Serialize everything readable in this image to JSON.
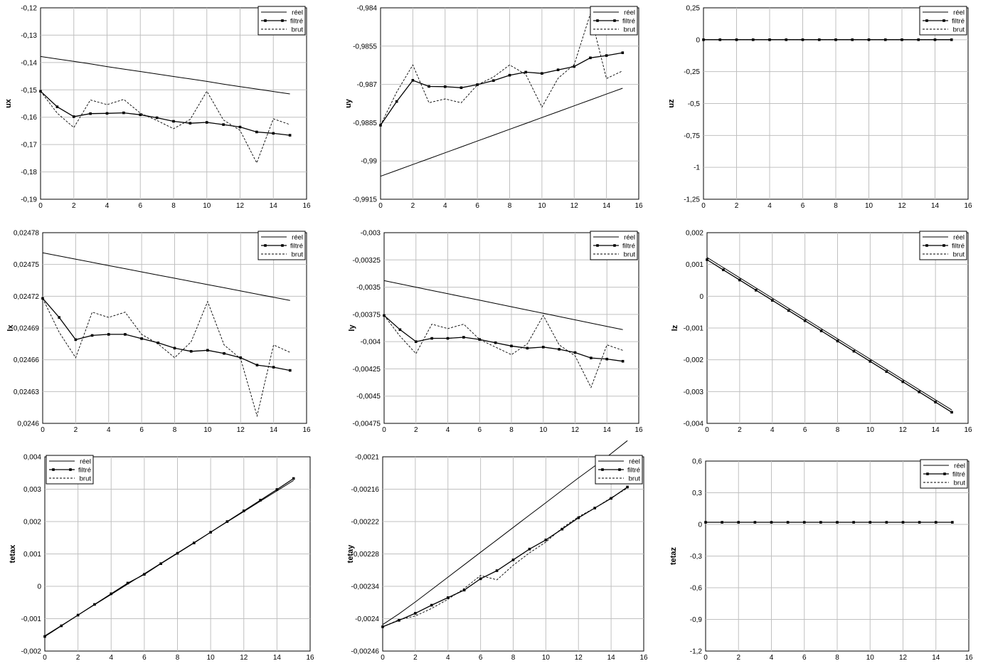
{
  "legend_labels": [
    "réel",
    "filtré",
    "brut"
  ],
  "chart_data": [
    {
      "type": "line",
      "ylabel": "ux",
      "x": [
        0,
        1,
        2,
        3,
        4,
        5,
        6,
        7,
        8,
        9,
        10,
        11,
        12,
        13,
        14,
        15
      ],
      "xlim": [
        0,
        16
      ],
      "xticks": [
        "0",
        "2",
        "4",
        "6",
        "8",
        "10",
        "12",
        "14",
        "16"
      ],
      "ylim": [
        -0.19,
        -0.12
      ],
      "yticks": [
        "-0,19",
        "-0,18",
        "-0,17",
        "-0,16",
        "-0,15",
        "-0,14",
        "-0,13",
        "-0,12"
      ],
      "legend_position": "top-right",
      "grid": true,
      "series": [
        {
          "name": "réel",
          "style": "solid",
          "values": [
            -0.1378,
            -0.1387,
            -0.1396,
            -0.1405,
            -0.1415,
            -0.1424,
            -0.1433,
            -0.1442,
            -0.1451,
            -0.146,
            -0.1469,
            -0.1479,
            -0.1488,
            -0.1497,
            -0.1506,
            -0.1515
          ]
        },
        {
          "name": "filtré",
          "style": "marker",
          "values": [
            -0.1505,
            -0.1562,
            -0.1598,
            -0.1587,
            -0.1586,
            -0.1584,
            -0.1591,
            -0.1602,
            -0.1615,
            -0.1622,
            -0.1619,
            -0.1627,
            -0.1636,
            -0.1654,
            -0.1659,
            -0.1666
          ]
        },
        {
          "name": "brut",
          "style": "dashed",
          "values": [
            -0.1505,
            -0.1585,
            -0.1638,
            -0.1537,
            -0.1554,
            -0.1535,
            -0.1585,
            -0.1612,
            -0.1642,
            -0.1608,
            -0.1505,
            -0.161,
            -0.1648,
            -0.1767,
            -0.1606,
            -0.1627
          ]
        }
      ]
    },
    {
      "type": "line",
      "ylabel": "uy",
      "x": [
        0,
        1,
        2,
        3,
        4,
        5,
        6,
        7,
        8,
        9,
        10,
        11,
        12,
        13,
        14,
        15
      ],
      "xlim": [
        0,
        16
      ],
      "xticks": [
        "0",
        "2",
        "4",
        "6",
        "8",
        "10",
        "12",
        "14",
        "16"
      ],
      "ylim": [
        -0.9915,
        -0.984
      ],
      "yticks": [
        "-0,9915",
        "-0,99",
        "-0,9885",
        "-0,987",
        "-0,9855",
        "-0,984"
      ],
      "legend_position": "top-right",
      "grid": true,
      "series": [
        {
          "name": "réel",
          "style": "solid",
          "values": [
            -0.9906,
            -0.99037,
            -0.99014,
            -0.98991,
            -0.98968,
            -0.98945,
            -0.98922,
            -0.98899,
            -0.98876,
            -0.98853,
            -0.9883,
            -0.98807,
            -0.98784,
            -0.98761,
            -0.98738,
            -0.98715
          ]
        },
        {
          "name": "filtré",
          "style": "marker",
          "values": [
            -0.9886,
            -0.98767,
            -0.98684,
            -0.98708,
            -0.98709,
            -0.98713,
            -0.98701,
            -0.98685,
            -0.98664,
            -0.98652,
            -0.98657,
            -0.98643,
            -0.9863,
            -0.98596,
            -0.98587,
            -0.98576
          ]
        },
        {
          "name": "brut",
          "style": "dashed",
          "values": [
            -0.9886,
            -0.9873,
            -0.98624,
            -0.98772,
            -0.98757,
            -0.98772,
            -0.98702,
            -0.98671,
            -0.98624,
            -0.98661,
            -0.98789,
            -0.98676,
            -0.98622,
            -0.98424,
            -0.98677,
            -0.98647
          ]
        }
      ]
    },
    {
      "type": "line",
      "ylabel": "uz",
      "x": [
        0,
        1,
        2,
        3,
        4,
        5,
        6,
        7,
        8,
        9,
        10,
        11,
        12,
        13,
        14,
        15
      ],
      "xlim": [
        0,
        16
      ],
      "xticks": [
        "0",
        "2",
        "4",
        "6",
        "8",
        "10",
        "12",
        "14",
        "16"
      ],
      "ylim": [
        -1.25,
        0.25
      ],
      "yticks": [
        "-1,25",
        "-1",
        "-0,75",
        "-0,5",
        "-0,25",
        "0",
        "0,25"
      ],
      "legend_position": "top-right",
      "grid": true,
      "series": [
        {
          "name": "réel",
          "style": "solid",
          "values": [
            0,
            0,
            0,
            0,
            0,
            0,
            0,
            0,
            0,
            0,
            0,
            0,
            0,
            0,
            0,
            0
          ]
        },
        {
          "name": "filtré",
          "style": "marker",
          "values": [
            0,
            0,
            0,
            0,
            0,
            0,
            0,
            0,
            0,
            0,
            0,
            0,
            0,
            0,
            0,
            0
          ]
        },
        {
          "name": "brut",
          "style": "dashed",
          "values": [
            0,
            0,
            0,
            0,
            0,
            0,
            0,
            0,
            0,
            0,
            0,
            0,
            0,
            0,
            0,
            0
          ]
        }
      ]
    },
    {
      "type": "line",
      "ylabel": "lx",
      "x": [
        0,
        1,
        2,
        3,
        4,
        5,
        6,
        7,
        8,
        9,
        10,
        11,
        12,
        13,
        14,
        15
      ],
      "xlim": [
        0,
        16
      ],
      "xticks": [
        "0",
        "2",
        "4",
        "6",
        "8",
        "10",
        "12",
        "14",
        "16"
      ],
      "ylim": [
        0.0246,
        0.02478
      ],
      "yticks": [
        "0,0246",
        "0,02463",
        "0,02466",
        "0,02469",
        "0,02472",
        "0,02475",
        "0,02478"
      ],
      "legend_position": "top-right",
      "grid": true,
      "series": [
        {
          "name": "réel",
          "style": "solid",
          "values": [
            0.024761,
            0.024758,
            0.024755,
            0.024752,
            0.024749,
            0.024746,
            0.024743,
            0.02474,
            0.024737,
            0.024734,
            0.024731,
            0.024728,
            0.024725,
            0.024722,
            0.024719,
            0.024716
          ]
        },
        {
          "name": "filtré",
          "style": "marker",
          "values": [
            0.024718,
            0.0247,
            0.024679,
            0.024683,
            0.024684,
            0.024684,
            0.02468,
            0.024676,
            0.024671,
            0.024668,
            0.024669,
            0.024666,
            0.024662,
            0.024655,
            0.024653,
            0.02465
          ]
        },
        {
          "name": "brut",
          "style": "dashed",
          "values": [
            0.024718,
            0.024686,
            0.024662,
            0.024705,
            0.0247,
            0.024705,
            0.024684,
            0.024675,
            0.024662,
            0.024677,
            0.024715,
            0.024674,
            0.024661,
            0.024607,
            0.024674,
            0.024667
          ]
        }
      ]
    },
    {
      "type": "line",
      "ylabel": "ly",
      "x": [
        0,
        1,
        2,
        3,
        4,
        5,
        6,
        7,
        8,
        9,
        10,
        11,
        12,
        13,
        14,
        15
      ],
      "xlim": [
        0,
        16
      ],
      "xticks": [
        "0",
        "2",
        "4",
        "6",
        "8",
        "10",
        "12",
        "14",
        "16"
      ],
      "ylim": [
        -0.00475,
        -0.003
      ],
      "yticks": [
        "-0,00475",
        "-0,0045",
        "-0,00425",
        "-0,004",
        "-0,00375",
        "-0,0035",
        "-0,00325",
        "-0,003"
      ],
      "legend_position": "top-right",
      "grid": true,
      "series": [
        {
          "name": "réel",
          "style": "solid",
          "values": [
            -0.00344,
            -0.00347,
            -0.0035,
            -0.00353,
            -0.00356,
            -0.00359,
            -0.00362,
            -0.00365,
            -0.00368,
            -0.00371,
            -0.00374,
            -0.00377,
            -0.0038,
            -0.00383,
            -0.00386,
            -0.00389
          ]
        },
        {
          "name": "filtré",
          "style": "marker",
          "values": [
            -0.00376,
            -0.00389,
            -0.004,
            -0.00397,
            -0.00397,
            -0.00396,
            -0.00398,
            -0.00401,
            -0.00404,
            -0.00406,
            -0.00405,
            -0.00407,
            -0.0041,
            -0.00415,
            -0.00416,
            -0.00418
          ]
        },
        {
          "name": "brut",
          "style": "dashed",
          "values": [
            -0.00376,
            -0.00395,
            -0.00411,
            -0.00384,
            -0.00388,
            -0.00384,
            -0.00398,
            -0.00405,
            -0.00412,
            -0.00402,
            -0.00376,
            -0.00403,
            -0.00413,
            -0.00442,
            -0.00403,
            -0.00408
          ]
        }
      ]
    },
    {
      "type": "line",
      "ylabel": "lz",
      "x": [
        0,
        1,
        2,
        3,
        4,
        5,
        6,
        7,
        8,
        9,
        10,
        11,
        12,
        13,
        14,
        15
      ],
      "xlim": [
        0,
        16
      ],
      "xticks": [
        "0",
        "2",
        "4",
        "6",
        "8",
        "10",
        "12",
        "14",
        "16"
      ],
      "ylim": [
        -0.004,
        0.002
      ],
      "yticks": [
        "-0,004",
        "-0,003",
        "-0,002",
        "-0,001",
        "0",
        "0,001",
        "0,002"
      ],
      "legend_position": "top-right",
      "grid": true,
      "series": [
        {
          "name": "réel",
          "style": "solid",
          "values": [
            0.00122,
            0.0009,
            0.00058,
            0.00026,
            -6e-05,
            -0.00038,
            -0.0007,
            -0.00102,
            -0.00134,
            -0.00166,
            -0.00198,
            -0.0023,
            -0.00262,
            -0.00294,
            -0.00326,
            -0.00358
          ]
        },
        {
          "name": "filtré",
          "style": "marker",
          "values": [
            0.00115,
            0.00083,
            0.00051,
            0.00019,
            -0.00013,
            -0.00045,
            -0.00077,
            -0.00109,
            -0.00141,
            -0.00173,
            -0.00205,
            -0.00237,
            -0.00269,
            -0.00301,
            -0.00333,
            -0.00365
          ]
        },
        {
          "name": "brut",
          "style": "dashed",
          "values": [
            0.00115,
            0.00083,
            0.00051,
            0.00019,
            -0.00013,
            -0.00045,
            -0.00077,
            -0.00109,
            -0.00141,
            -0.00173,
            -0.00205,
            -0.00237,
            -0.00269,
            -0.00301,
            -0.00333,
            -0.00365
          ]
        }
      ]
    },
    {
      "type": "line",
      "ylabel": "tetax",
      "x": [
        0,
        1,
        2,
        3,
        4,
        5,
        6,
        7,
        8,
        9,
        10,
        11,
        12,
        13,
        14,
        15
      ],
      "xlim": [
        0,
        16
      ],
      "xticks": [
        "0",
        "2",
        "4",
        "6",
        "8",
        "10",
        "12",
        "14",
        "16"
      ],
      "ylim": [
        -0.002,
        0.004
      ],
      "yticks": [
        "-0,002",
        "-0,001",
        "0",
        "0,001",
        "0,002",
        "0,003",
        "0,004"
      ],
      "legend_position": "top-left",
      "grid": true,
      "series": [
        {
          "name": "réel",
          "style": "solid",
          "values": [
            -0.00153,
            -0.00121,
            -0.00089,
            -0.00057,
            -0.00025,
            7e-05,
            0.00039,
            0.00071,
            0.00103,
            0.00135,
            0.00167,
            0.00199,
            0.00231,
            0.00263,
            0.00295,
            0.00327
          ]
        },
        {
          "name": "filtré",
          "style": "marker",
          "values": [
            -0.00155,
            -0.00122,
            -0.00089,
            -0.00056,
            -0.00023,
            0.0001,
            0.00037,
            0.0007,
            0.00102,
            0.00134,
            0.00167,
            0.002,
            0.00233,
            0.00266,
            0.00299,
            0.00333
          ]
        },
        {
          "name": "brut",
          "style": "dashed",
          "values": [
            -0.00155,
            -0.00122,
            -0.00089,
            -0.00056,
            -0.00023,
            0.0001,
            0.00037,
            0.0007,
            0.00102,
            0.00134,
            0.00167,
            0.002,
            0.00233,
            0.00266,
            0.00299,
            0.00333
          ]
        }
      ]
    },
    {
      "type": "line",
      "ylabel": "tetay",
      "x": [
        0,
        1,
        2,
        3,
        4,
        5,
        6,
        7,
        8,
        9,
        10,
        11,
        12,
        13,
        14,
        15
      ],
      "xlim": [
        0,
        16
      ],
      "xticks": [
        "0",
        "2",
        "4",
        "6",
        "8",
        "10",
        "12",
        "14",
        "16"
      ],
      "ylim": [
        -0.00246,
        -0.0021
      ],
      "yticks": [
        "-0,00246",
        "-0,0024",
        "-0,00234",
        "-0,00228",
        "-0,00222",
        "-0,00216",
        "-0,0021"
      ],
      "legend_position": "top-right",
      "grid": true,
      "series": [
        {
          "name": "réel",
          "style": "solid",
          "values": [
            -0.002411,
            -0.002391,
            -0.002369,
            -0.002346,
            -0.002323,
            -0.0023,
            -0.002277,
            -0.002254,
            -0.002231,
            -0.002208,
            -0.002185,
            -0.002162,
            -0.002139,
            -0.002117,
            -0.002094,
            -0.00207
          ]
        },
        {
          "name": "filtré",
          "style": "marker",
          "values": [
            -0.002415,
            -0.002403,
            -0.00239,
            -0.002375,
            -0.002361,
            -0.002347,
            -0.002326,
            -0.002311,
            -0.002291,
            -0.002271,
            -0.002254,
            -0.002234,
            -0.002213,
            -0.002195,
            -0.002177,
            -0.002156
          ]
        },
        {
          "name": "brut",
          "style": "dashed",
          "values": [
            -0.002415,
            -0.002402,
            -0.002395,
            -0.002381,
            -0.002364,
            -0.002344,
            -0.00232,
            -0.002328,
            -0.002301,
            -0.002278,
            -0.002258,
            -0.002232,
            -0.002211,
            -0.002195,
            -0.002176,
            -0.002158
          ]
        }
      ]
    },
    {
      "type": "line",
      "ylabel": "tetaz",
      "x": [
        0,
        1,
        2,
        3,
        4,
        5,
        6,
        7,
        8,
        9,
        10,
        11,
        12,
        13,
        14,
        15
      ],
      "xlim": [
        0,
        16
      ],
      "xticks": [
        "0",
        "2",
        "4",
        "6",
        "8",
        "10",
        "12",
        "14",
        "16"
      ],
      "ylim": [
        -1.2,
        0.6
      ],
      "yticks": [
        "-1,2",
        "-0,9",
        "-0,6",
        "-0,3",
        "0",
        "0,3",
        "0,6"
      ],
      "legend_position": "top-right",
      "grid": true,
      "series": [
        {
          "name": "réel",
          "style": "solid",
          "values": [
            0.02,
            0.02,
            0.02,
            0.02,
            0.02,
            0.02,
            0.02,
            0.02,
            0.02,
            0.02,
            0.02,
            0.02,
            0.02,
            0.02,
            0.02,
            0.02
          ]
        },
        {
          "name": "filtré",
          "style": "marker",
          "values": [
            0.02,
            0.02,
            0.02,
            0.02,
            0.02,
            0.02,
            0.02,
            0.02,
            0.02,
            0.02,
            0.02,
            0.02,
            0.02,
            0.02,
            0.02,
            0.02
          ]
        },
        {
          "name": "brut",
          "style": "dashed",
          "values": [
            0.02,
            0.02,
            0.02,
            0.02,
            0.02,
            0.02,
            0.02,
            0.02,
            0.02,
            0.02,
            0.02,
            0.02,
            0.02,
            0.02,
            0.02,
            0.02
          ]
        }
      ]
    }
  ]
}
